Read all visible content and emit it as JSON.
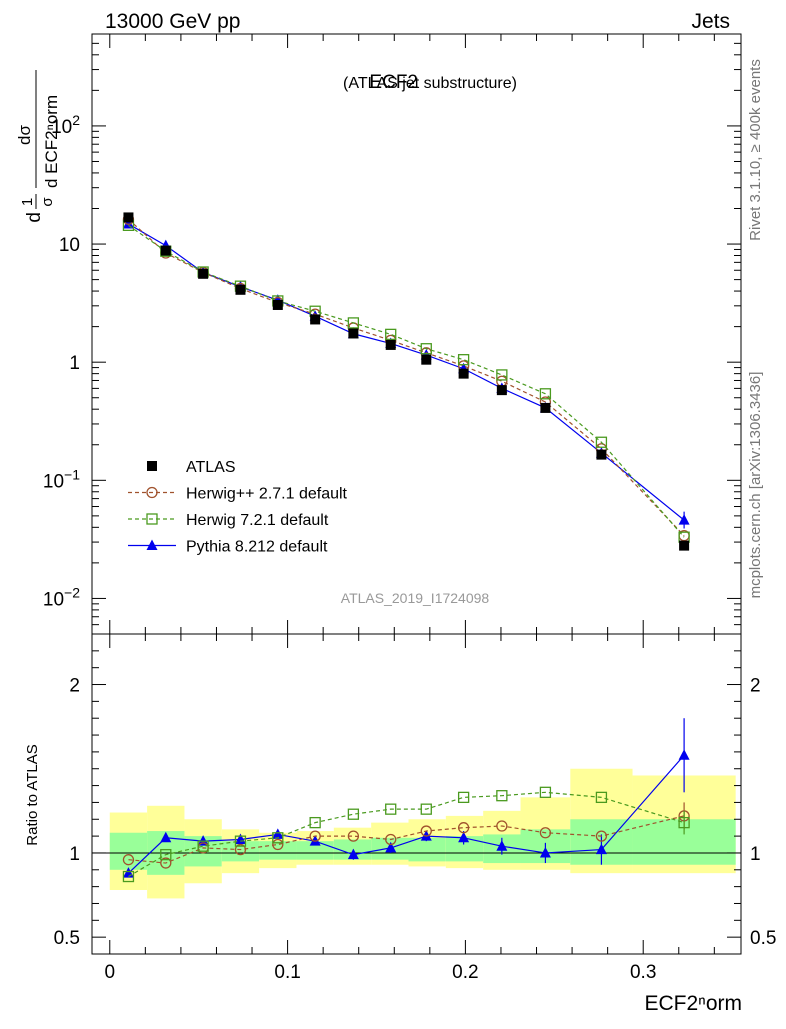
{
  "header": {
    "left": "13000 GeV pp",
    "right": "Jets"
  },
  "side_labels": {
    "rivet": "Rivet 3.1.10, ≥ 400k events",
    "mcplots": "mcplots.cern.ch [arXiv:1306.3436]"
  },
  "chart_data": {
    "type": "scatter",
    "title": "ECF2",
    "subtitle": "(ATLAS jet substructure)",
    "watermark": "ATLAS_2019_I1724098",
    "xlabel": "ECF2ⁿorm",
    "ylabel_main": "1/σ dσ/d ECF2ⁿorm",
    "ylabel_ratio": "Ratio to ATLAS",
    "xlim": [
      -0.01,
      0.355
    ],
    "ylim_main": [
      0.005,
      600
    ],
    "ylim_ratio": [
      0.4,
      2.3
    ],
    "x_ticks": [
      {
        "v": 0,
        "label": "0"
      },
      {
        "v": 0.1,
        "label": "0.1"
      },
      {
        "v": 0.2,
        "label": "0.2"
      },
      {
        "v": 0.3,
        "label": "0.3"
      }
    ],
    "y_ticks_main": [
      {
        "v": 0.01,
        "base": "10",
        "exp": "−2"
      },
      {
        "v": 0.1,
        "base": "10",
        "exp": "−1"
      },
      {
        "v": 1,
        "base": "1",
        "exp": ""
      },
      {
        "v": 10,
        "base": "10",
        "exp": ""
      },
      {
        "v": 100,
        "base": "10",
        "exp": "2"
      }
    ],
    "y_ticks_ratio": [
      {
        "v": 0.5,
        "label": "0.5"
      },
      {
        "v": 1,
        "label": "1"
      },
      {
        "v": 2,
        "label": "2"
      }
    ],
    "x": [
      0.0105,
      0.0315,
      0.0525,
      0.0735,
      0.0945,
      0.1155,
      0.137,
      0.158,
      0.178,
      0.199,
      0.2205,
      0.245,
      0.2765,
      0.323
    ],
    "bins": [
      [
        0,
        0.021
      ],
      [
        0.021,
        0.042
      ],
      [
        0.042,
        0.063
      ],
      [
        0.063,
        0.084
      ],
      [
        0.084,
        0.105
      ],
      [
        0.105,
        0.126
      ],
      [
        0.126,
        0.147
      ],
      [
        0.147,
        0.168
      ],
      [
        0.168,
        0.189
      ],
      [
        0.189,
        0.21
      ],
      [
        0.21,
        0.231
      ],
      [
        0.231,
        0.259
      ],
      [
        0.259,
        0.294
      ],
      [
        0.294,
        0.352
      ]
    ],
    "band_total": [
      [
        0.78,
        1.24
      ],
      [
        0.73,
        1.28
      ],
      [
        0.82,
        1.2
      ],
      [
        0.88,
        1.14
      ],
      [
        0.91,
        1.12
      ],
      [
        0.93,
        1.13
      ],
      [
        0.93,
        1.15
      ],
      [
        0.93,
        1.18
      ],
      [
        0.92,
        1.2
      ],
      [
        0.91,
        1.22
      ],
      [
        0.9,
        1.25
      ],
      [
        0.9,
        1.33
      ],
      [
        0.88,
        1.5
      ],
      [
        0.88,
        1.46
      ]
    ],
    "band_stat": [
      [
        0.9,
        1.12
      ],
      [
        0.87,
        1.13
      ],
      [
        0.92,
        1.1
      ],
      [
        0.95,
        1.07
      ],
      [
        0.96,
        1.07
      ],
      [
        0.96,
        1.07
      ],
      [
        0.96,
        1.08
      ],
      [
        0.96,
        1.09
      ],
      [
        0.95,
        1.09
      ],
      [
        0.95,
        1.1
      ],
      [
        0.94,
        1.11
      ],
      [
        0.94,
        1.14
      ],
      [
        0.93,
        1.2
      ],
      [
        0.93,
        1.2
      ]
    ],
    "series": [
      {
        "name": "ATLAS",
        "style": "data",
        "color": "#000000",
        "values": [
          16.8,
          8.8,
          5.6,
          4.1,
          3.05,
          2.3,
          1.75,
          1.4,
          1.05,
          0.8,
          0.58,
          0.41,
          0.165,
          0.028
        ]
      },
      {
        "name": "Herwig++ 2.7.1 default",
        "style": "circle",
        "color": "#a0522d",
        "values": [
          16.2,
          8.4,
          5.75,
          4.2,
          3.2,
          2.55,
          1.95,
          1.53,
          1.2,
          0.93,
          0.69,
          0.46,
          0.185,
          0.034
        ],
        "ratio": [
          0.96,
          0.94,
          1.03,
          1.02,
          1.05,
          1.1,
          1.1,
          1.08,
          1.13,
          1.15,
          1.16,
          1.12,
          1.1,
          1.22
        ],
        "ratio_err": [
          0,
          0,
          0,
          0,
          0,
          0,
          0,
          0,
          0,
          0,
          0,
          0,
          0,
          0.08
        ]
      },
      {
        "name": "Herwig 7.2.1 default",
        "style": "square",
        "color": "#4a9a1f",
        "values": [
          14.4,
          8.7,
          5.8,
          4.4,
          3.3,
          2.7,
          2.15,
          1.72,
          1.3,
          1.05,
          0.78,
          0.54,
          0.21,
          0.033
        ],
        "ratio": [
          0.86,
          0.99,
          1.04,
          1.07,
          1.09,
          1.18,
          1.23,
          1.26,
          1.26,
          1.33,
          1.34,
          1.36,
          1.33,
          1.18
        ],
        "ratio_err": [
          0,
          0,
          0,
          0,
          0,
          0,
          0,
          0,
          0,
          0,
          0,
          0,
          0,
          0.07
        ]
      },
      {
        "name": "Pythia 8.212 default",
        "style": "triangle",
        "color": "#0000ee",
        "values": [
          14.8,
          9.7,
          5.75,
          4.35,
          3.35,
          2.45,
          1.74,
          1.44,
          1.15,
          0.88,
          0.6,
          0.41,
          0.17,
          0.046
        ],
        "ratio": [
          0.88,
          1.09,
          1.07,
          1.08,
          1.11,
          1.07,
          0.99,
          1.03,
          1.1,
          1.09,
          1.04,
          1.0,
          1.02,
          1.58
        ],
        "ratio_err": [
          0.01,
          0.02,
          0.02,
          0.02,
          0.025,
          0.025,
          0.03,
          0.03,
          0.03,
          0.04,
          0.05,
          0.06,
          0.09,
          0.22
        ]
      }
    ]
  }
}
